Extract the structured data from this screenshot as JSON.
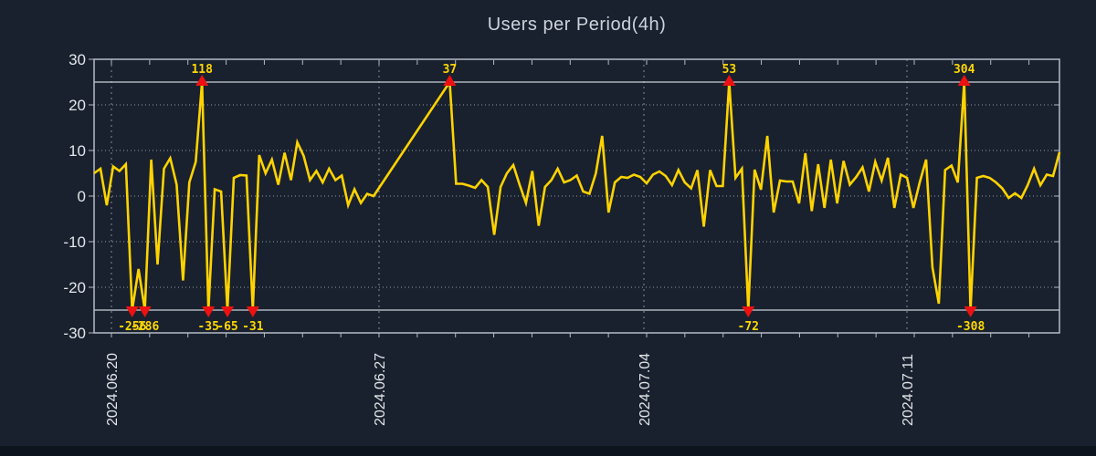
{
  "title": "Users per Period(4h)",
  "chart_data": {
    "type": "line",
    "title": "Users per Period(4h)",
    "ylim": [
      -30,
      30
    ],
    "yticks": [
      30,
      20,
      10,
      0,
      -10,
      -20,
      -30
    ],
    "clip_value": 25,
    "grid": "dotted horizontal at every 10, dashed vertical at weekly dates, solid clip lines at +25/-25",
    "legend_position": "none",
    "x_labels": [
      "2024.06.20",
      "2024.06.27",
      "2024.07.04",
      "2024.07.11"
    ],
    "x_period": "4h",
    "series_color": "#ffd300",
    "marker_color": "#ee1111",
    "extreme_label_color": "#ffd700",
    "axis_text_color": "#e3e6ea",
    "extreme_values_top": [
      118,
      37,
      53,
      304
    ],
    "extreme_values_bottom": [
      -256,
      -286,
      -35,
      -65,
      -31,
      -72,
      -308
    ],
    "values": [
      5,
      6,
      -2,
      6.5,
      5.5,
      7,
      -256,
      -16,
      -286,
      8,
      -15,
      6,
      8.3,
      2.5,
      -18.5,
      3,
      7.5,
      118,
      -35,
      1.5,
      1,
      -65,
      4,
      4.6,
      4.5,
      -31,
      9,
      5,
      8,
      2.5,
      9.5,
      3.5,
      11.8,
      8.8,
      3.5,
      5.5,
      3,
      6,
      3.5,
      4.5,
      -2,
      1.5,
      -1.5,
      0.5,
      0,
      null,
      null,
      null,
      null,
      null,
      null,
      null,
      null,
      null,
      null,
      null,
      37,
      2.7,
      2.7,
      2.3,
      1.8,
      3.5,
      2,
      -8.5,
      2,
      5,
      6.8,
      2.5,
      -1.5,
      5.5,
      -6.5,
      2,
      3.5,
      6,
      3,
      3.5,
      4.5,
      1,
      0.5,
      5,
      13.2,
      -3.6,
      3,
      4.2,
      4,
      4.7,
      4.2,
      2.8,
      4.7,
      5.4,
      4.4,
      2.4,
      5.7,
      3,
      1.7,
      5.7,
      -6.7,
      5.7,
      2.2,
      2.2,
      53,
      4,
      6,
      -72,
      5.8,
      1.4,
      13.2,
      -3.6,
      3.4,
      3.2,
      3.2,
      -1.6,
      9.4,
      -3.3,
      7,
      -2.6,
      8,
      -1.6,
      7.7,
      2.5,
      4.2,
      6.3,
      1,
      7.5,
      3.4,
      8.4,
      -2.6,
      4.7,
      4,
      -2.6,
      3,
      8,
      -15.6,
      -23.6,
      5.7,
      6.7,
      3,
      304,
      -308,
      4,
      4.4,
      4,
      3,
      1.7,
      -0.4,
      0.6,
      -0.4,
      2.4,
      6,
      2.4,
      4.7,
      4.4,
      9.6
    ]
  }
}
